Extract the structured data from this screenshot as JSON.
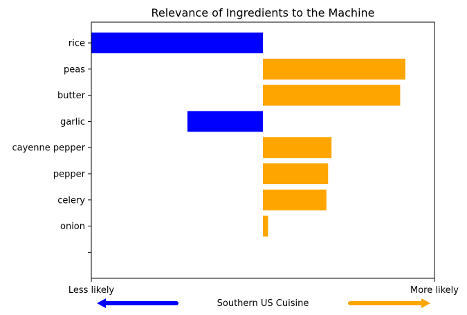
{
  "chart_data": {
    "type": "bar",
    "orientation": "horizontal",
    "title": "Relevance of Ingredients to the Machine",
    "xlabel": "Southern US Cuisine",
    "x_left_label": "Less likely",
    "x_right_label": "More likely",
    "categories": [
      "rice",
      "peas",
      "butter",
      "garlic",
      "cayenne pepper",
      "pepper",
      "celery",
      "onion",
      ""
    ],
    "values": [
      -0.5,
      0.415,
      0.4,
      -0.22,
      0.2,
      0.19,
      0.185,
      0.015,
      null
    ],
    "xlim": [
      -0.5,
      0.5
    ],
    "grid": false,
    "legend": "none",
    "colors": {
      "negative": "#0000ff",
      "positive": "#ffa500"
    }
  }
}
